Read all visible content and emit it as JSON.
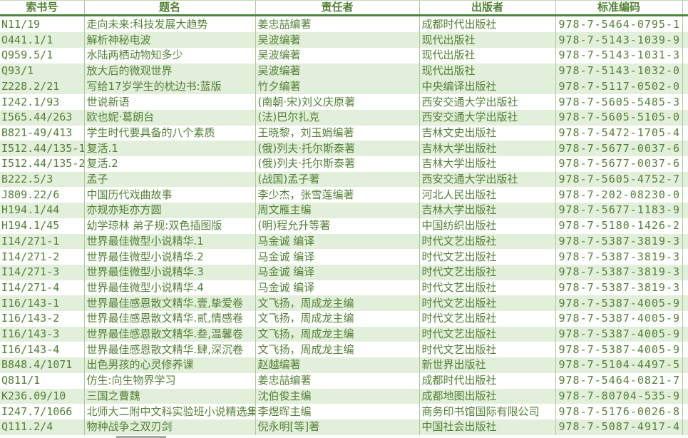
{
  "table": {
    "columns": [
      {
        "key": "call_number",
        "label": "索书号"
      },
      {
        "key": "title",
        "label": "题名"
      },
      {
        "key": "author",
        "label": "责任者"
      },
      {
        "key": "publisher",
        "label": "出版者"
      },
      {
        "key": "isbn",
        "label": "标准编码"
      }
    ],
    "rows": [
      {
        "call_number": "N11/19",
        "title": "走向未来:科技发展大趋势",
        "author": "姜忠喆编著",
        "publisher": "成都时代出版社",
        "isbn": "978-7-5464-0795-1",
        "shade": "white"
      },
      {
        "call_number": "O441.1/1",
        "title": "解析神秘电波",
        "author": "吴波编著",
        "publisher": "现代出版社",
        "isbn": "978-7-5143-1039-9",
        "shade": "green"
      },
      {
        "call_number": "Q959.5/1",
        "title": "水陆两栖动物知多少",
        "author": "吴波编著",
        "publisher": "现代出版社",
        "isbn": "978-7-5143-1031-3",
        "shade": "white"
      },
      {
        "call_number": "Q93/1",
        "title": "放大后的微观世界",
        "author": "吴波编著",
        "publisher": "现代出版社",
        "isbn": "978-7-5143-1032-0",
        "shade": "green"
      },
      {
        "call_number": "Z228.2/21",
        "title": "写给17岁学生的枕边书:蓝版",
        "author": "竹夕编著",
        "publisher": "中央编译出版社",
        "isbn": "978-7-5117-0502-0",
        "shade": "green"
      },
      {
        "call_number": "I242.1/93",
        "title": "世说新语",
        "author": "(南朝·宋)刘义庆原著",
        "publisher": "西安交通大学出版社",
        "isbn": "978-7-5605-5485-3",
        "shade": "white"
      },
      {
        "call_number": "I565.44/263",
        "title": "欧也妮·葛朗台",
        "author": "(法)巴尔扎克",
        "publisher": "西安交通大学出版社",
        "isbn": "978-7-5605-5105-0",
        "shade": "green"
      },
      {
        "call_number": "B821-49/413",
        "title": "学生时代要具备的八个素质",
        "author": "王晓黎，刘玉娟编著",
        "publisher": "吉林文史出版社",
        "isbn": "978-7-5472-1705-4",
        "shade": "white"
      },
      {
        "call_number": "I512.44/135-1",
        "title": "复活.1",
        "author": "(俄)列夫·托尔斯泰著",
        "publisher": "吉林大学出版社",
        "isbn": "978-7-5677-0037-6",
        "shade": "green"
      },
      {
        "call_number": "I512.44/135-2",
        "title": "复活.2",
        "author": "(俄)列夫·托尔斯泰著",
        "publisher": "吉林大学出版社",
        "isbn": "978-7-5677-0037-6",
        "shade": "white"
      },
      {
        "call_number": "B222.5/3",
        "title": "孟子",
        "author": "(战国)孟子著",
        "publisher": "西安交通大学出版社",
        "isbn": "978-7-5605-4752-7",
        "shade": "green"
      },
      {
        "call_number": "J809.22/6",
        "title": "中国历代戏曲故事",
        "author": "李少杰，张雪莲编著",
        "publisher": "河北人民出版社",
        "isbn": "978-7-202-08230-0",
        "shade": "white"
      },
      {
        "call_number": "H194.1/44",
        "title": "亦规亦矩亦方圆",
        "author": "周文雁主编",
        "publisher": "吉林大学出版社",
        "isbn": "978-7-5677-1183-9",
        "shade": "green"
      },
      {
        "call_number": "H194.1/45",
        "title": "幼学琼林 弟子规:双色插图版",
        "author": "(明)程允升等著",
        "publisher": "中国纺织出版社",
        "isbn": "978-7-5180-1426-2",
        "shade": "white"
      },
      {
        "call_number": "I14/271-1",
        "title": "世界最佳微型小说精华.1",
        "author": "马金诚 编译",
        "publisher": "时代文艺出版社",
        "isbn": "978-7-5387-3819-3",
        "shade": "green"
      },
      {
        "call_number": "I14/271-2",
        "title": "世界最佳微型小说精华.2",
        "author": "马金诚 编译",
        "publisher": "时代文艺出版社",
        "isbn": "978-7-5387-3819-3",
        "shade": "white"
      },
      {
        "call_number": "I14/271-3",
        "title": "世界最佳微型小说精华.3",
        "author": "马金诚 编译",
        "publisher": "时代文艺出版社",
        "isbn": "978-7-5387-3819-3",
        "shade": "green"
      },
      {
        "call_number": "I14/271-4",
        "title": "世界最佳微型小说精华.4",
        "author": "马金诚 编译",
        "publisher": "时代文艺出版社",
        "isbn": "978-7-5387-3819-3",
        "shade": "white"
      },
      {
        "call_number": "I16/143-1",
        "title": "世界最佳感恩散文精华.壹,挚爱卷",
        "author": "文飞扬，周成龙主编",
        "publisher": "时代文艺出版社",
        "isbn": "978-7-5387-4005-9",
        "shade": "green"
      },
      {
        "call_number": "I16/143-2",
        "title": "世界最佳感恩散文精华.贰,情感卷",
        "author": "文飞扬，周成龙主编",
        "publisher": "时代文艺出版社",
        "isbn": "978-7-5387-4005-9",
        "shade": "white"
      },
      {
        "call_number": "I16/143-3",
        "title": "世界最佳感恩散文精华.叁,温馨卷",
        "author": "文飞扬，周成龙主编",
        "publisher": "时代文艺出版社",
        "isbn": "978-7-5387-4005-9",
        "shade": "green"
      },
      {
        "call_number": "I16/143-4",
        "title": "世界最佳感恩散文精华.肆,深沉卷",
        "author": "文飞扬，周成龙主编",
        "publisher": "时代文艺出版社",
        "isbn": "978-7-5387-4005-9",
        "shade": "white"
      },
      {
        "call_number": "B848.4/1071",
        "title": "出色男孩的心灵修养课",
        "author": "赵越编著",
        "publisher": "新世界出版社",
        "isbn": "978-7-5104-4497-5",
        "shade": "green"
      },
      {
        "call_number": "Q811/1",
        "title": "仿生:向生物界学习",
        "author": "姜忠喆编著",
        "publisher": "成都时代出版社",
        "isbn": "978-7-5464-0821-7",
        "shade": "white"
      },
      {
        "call_number": "K236.09/10",
        "title": "三国之曹魏",
        "author": "沈伯俊主编",
        "publisher": "成都地图出版社",
        "isbn": "978-7-80704-535-9",
        "shade": "green"
      },
      {
        "call_number": "I247.7/1066",
        "title": "北师大二附中文科实验班小说精选集",
        "author": "李煜晖主编",
        "publisher": "商务印书馆国际有限公司",
        "isbn": "978-7-5176-0026-8",
        "shade": "white"
      },
      {
        "call_number": "Q111.2/4",
        "title": "物种战争之双刃剑",
        "author": "倪永明[等]著",
        "publisher": "中国社会出版社",
        "isbn": "978-7-5087-4917-4",
        "shade": "green"
      }
    ]
  },
  "colors": {
    "text_green": "#538135",
    "row_green": "#E2EFDA",
    "row_white": "#FFFFFF",
    "grid_border": "#AFC7A0",
    "header_rule": "#4E8540",
    "partial_gray": "#A6A6A6"
  }
}
